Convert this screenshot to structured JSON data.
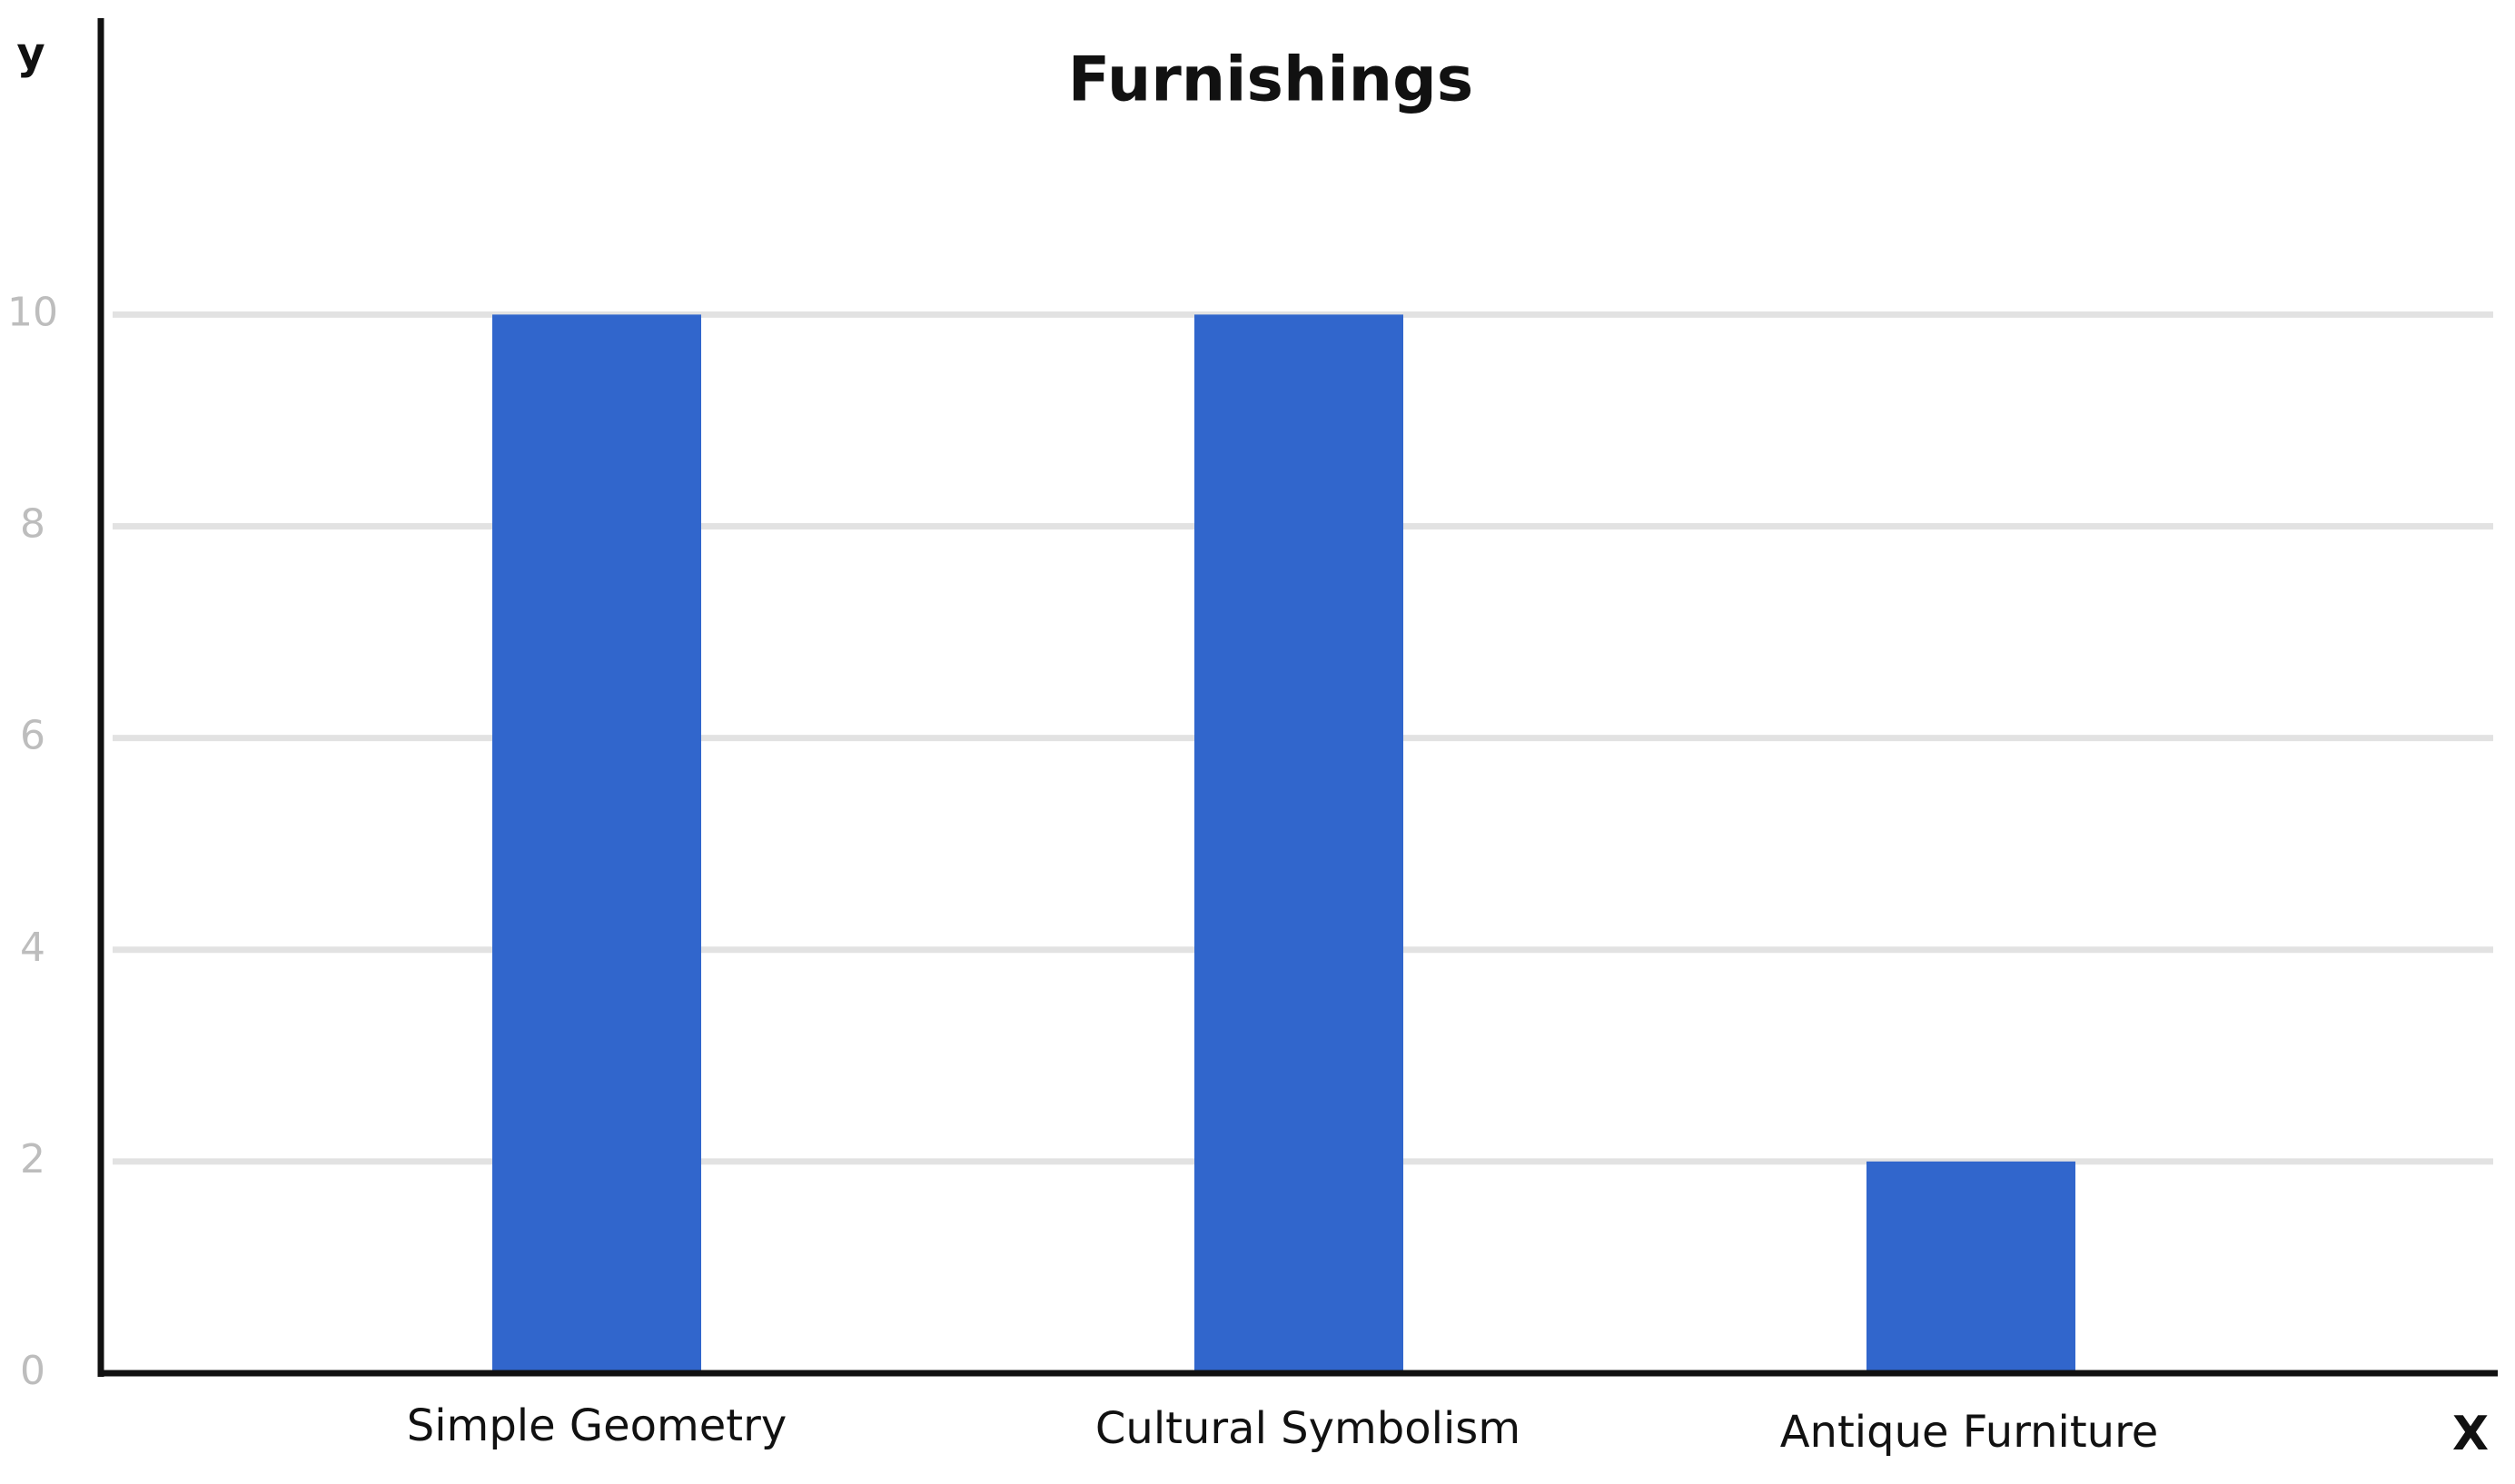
{
  "chart_data": {
    "type": "bar",
    "title": "Furnishings",
    "x_label": "X",
    "y_label": "y",
    "categories": [
      "Simple Geometry",
      "Cultural Symbolism",
      "Antique Furniture"
    ],
    "values": [
      10,
      10,
      2
    ],
    "color": "#3166cc",
    "ylim": [
      0,
      12.8
    ],
    "yticks": [
      0,
      2,
      4,
      6,
      8,
      10
    ],
    "grid": true
  }
}
